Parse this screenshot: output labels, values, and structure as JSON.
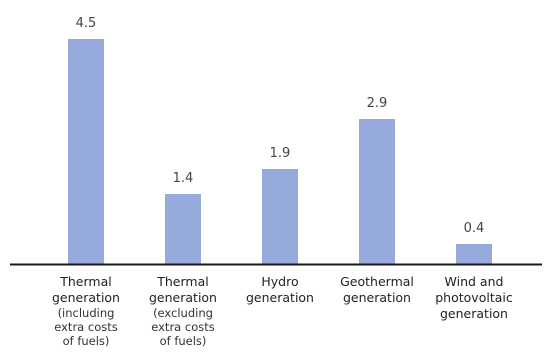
{
  "chart_data": {
    "type": "bar",
    "categories": [
      {
        "main": [
          "Thermal",
          "generation"
        ],
        "sub": [
          "(including",
          "extra costs",
          "of fuels)"
        ]
      },
      {
        "main": [
          "Thermal",
          "generation"
        ],
        "sub": [
          "(excluding",
          "extra costs",
          "of fuels)"
        ]
      },
      {
        "main": [
          "Hydro",
          "generation"
        ],
        "sub": []
      },
      {
        "main": [
          "Geothermal",
          "generation"
        ],
        "sub": []
      },
      {
        "main": [
          "Wind and",
          "photovoltaic",
          "generation"
        ],
        "sub": []
      }
    ],
    "values": [
      4.5,
      1.4,
      1.9,
      2.9,
      0.4
    ],
    "value_labels": [
      "4.5",
      "1.4",
      "1.9",
      "2.9",
      "0.4"
    ],
    "ylim": [
      0,
      5
    ],
    "grid": false,
    "title": "",
    "xlabel": "",
    "ylabel": ""
  },
  "colors": {
    "bar": "#96aadb",
    "axis": "#1a1a1a",
    "label": "#444444"
  }
}
